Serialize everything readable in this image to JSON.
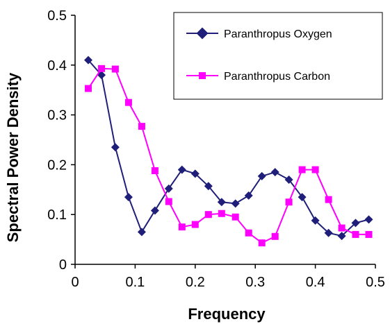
{
  "chart_data": {
    "type": "line",
    "title": "",
    "xlabel": "Frequency",
    "ylabel": "Spectral Power Density",
    "xlim": [
      0,
      0.5
    ],
    "ylim": [
      0,
      0.5
    ],
    "x_ticks": [
      "0",
      "0.1",
      "0.2",
      "0.3",
      "0.4",
      "0.5"
    ],
    "y_ticks": [
      "0",
      "0.1",
      "0.2",
      "0.3",
      "0.4",
      "0.5"
    ],
    "grid": false,
    "legend_position": "top-right",
    "series": [
      {
        "name": "Paranthropus Oxygen",
        "color": "#1f1f7a",
        "marker": "diamond",
        "x": [
          0.022,
          0.044,
          0.067,
          0.089,
          0.111,
          0.133,
          0.156,
          0.178,
          0.2,
          0.222,
          0.244,
          0.267,
          0.289,
          0.311,
          0.333,
          0.356,
          0.378,
          0.4,
          0.422,
          0.444,
          0.467,
          0.489
        ],
        "y": [
          0.41,
          0.38,
          0.235,
          0.135,
          0.065,
          0.108,
          0.152,
          0.19,
          0.182,
          0.157,
          0.125,
          0.122,
          0.138,
          0.177,
          0.185,
          0.17,
          0.135,
          0.088,
          0.063,
          0.057,
          0.083,
          0.09
        ]
      },
      {
        "name": "Paranthropus Carbon",
        "color": "#ff00ff",
        "marker": "square",
        "x": [
          0.022,
          0.044,
          0.067,
          0.089,
          0.111,
          0.133,
          0.156,
          0.178,
          0.2,
          0.222,
          0.244,
          0.267,
          0.289,
          0.311,
          0.333,
          0.356,
          0.378,
          0.4,
          0.422,
          0.444,
          0.467,
          0.489
        ],
        "y": [
          0.353,
          0.393,
          0.392,
          0.325,
          0.277,
          0.188,
          0.126,
          0.075,
          0.08,
          0.1,
          0.102,
          0.095,
          0.063,
          0.043,
          0.056,
          0.125,
          0.19,
          0.19,
          0.13,
          0.073,
          0.06,
          0.06
        ]
      }
    ]
  }
}
